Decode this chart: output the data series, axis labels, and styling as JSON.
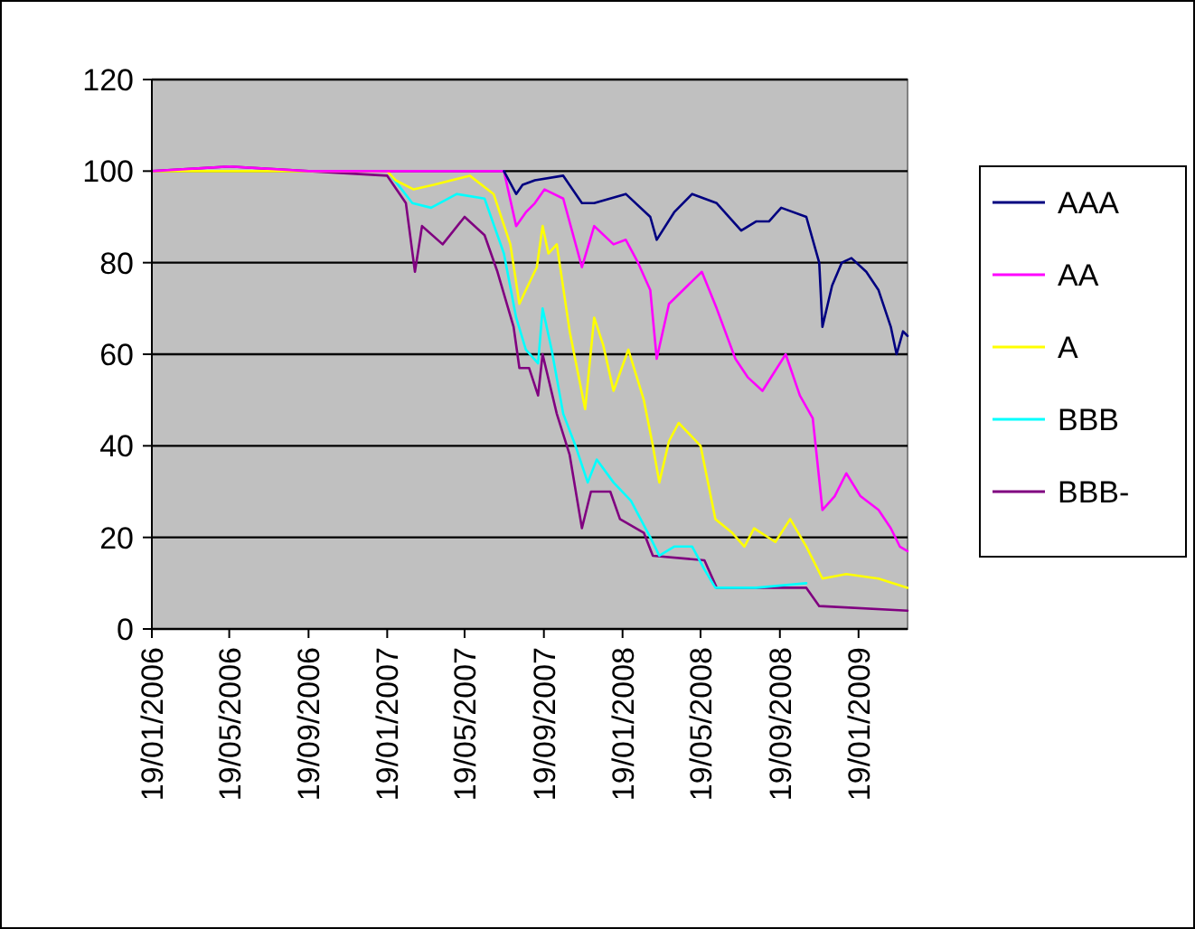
{
  "chart_data": {
    "type": "line",
    "xlim": [
      "2006-01-19",
      "2009-04-05"
    ],
    "ylim": [
      0,
      120
    ],
    "yticks": [
      0,
      20,
      40,
      60,
      80,
      100,
      120
    ],
    "xticks": [
      {
        "value": "2006-01-19",
        "label": "19/01/2006"
      },
      {
        "value": "2006-05-19",
        "label": "19/05/2006"
      },
      {
        "value": "2006-09-19",
        "label": "19/09/2006"
      },
      {
        "value": "2007-01-19",
        "label": "19/01/2007"
      },
      {
        "value": "2007-05-19",
        "label": "19/05/2007"
      },
      {
        "value": "2007-09-19",
        "label": "19/09/2007"
      },
      {
        "value": "2008-01-19",
        "label": "19/01/2008"
      },
      {
        "value": "2008-05-19",
        "label": "19/05/2008"
      },
      {
        "value": "2008-09-19",
        "label": "19/09/2008"
      },
      {
        "value": "2009-01-19",
        "label": "19/01/2009"
      }
    ],
    "grid": "y",
    "legend": "right",
    "marker": "none",
    "line_style": "solid",
    "series": [
      {
        "name": "AAA",
        "color": "#000080",
        "x": [
          "2007-07-19",
          "2007-08-07",
          "2007-08-17",
          "2007-09-05",
          "2007-10-19",
          "2007-11-17",
          "2007-12-06",
          "2008-01-24",
          "2008-03-02",
          "2008-03-12",
          "2008-04-08",
          "2008-05-06",
          "2008-06-13",
          "2008-07-21",
          "2008-08-13",
          "2008-09-02",
          "2008-09-21",
          "2008-10-30",
          "2008-11-19",
          "2008-11-24",
          "2008-12-09",
          "2008-12-24",
          "2009-01-08",
          "2009-01-31",
          "2009-02-19",
          "2009-03-10",
          "2009-03-19",
          "2009-03-29",
          "2009-04-05"
        ],
        "values": [
          100,
          95,
          97,
          98,
          99,
          93,
          93,
          95,
          90,
          85,
          91,
          95,
          93,
          87,
          89,
          89,
          92,
          90,
          80,
          66,
          75,
          80,
          81,
          78,
          74,
          66,
          60,
          65,
          64
        ]
      },
      {
        "name": "AA",
        "color": "#ff00ff",
        "x": [
          "2006-01-19",
          "2006-05-19",
          "2006-09-19",
          "2007-01-19",
          "2007-05-19",
          "2007-07-19",
          "2007-08-07",
          "2007-08-22",
          "2007-09-05",
          "2007-09-20",
          "2007-10-19",
          "2007-11-17",
          "2007-12-06",
          "2008-01-05",
          "2008-01-24",
          "2008-02-12",
          "2008-03-02",
          "2008-03-12",
          "2008-03-31",
          "2008-04-29",
          "2008-05-21",
          "2008-06-13",
          "2008-07-12",
          "2008-07-31",
          "2008-08-23",
          "2008-09-28",
          "2008-10-20",
          "2008-11-09",
          "2008-11-24",
          "2008-12-13",
          "2008-12-31",
          "2009-01-22",
          "2009-02-19",
          "2009-03-10",
          "2009-03-24",
          "2009-04-05"
        ],
        "values": [
          100,
          101,
          100,
          100,
          100,
          100,
          88,
          91,
          93,
          96,
          94,
          79,
          88,
          84,
          85,
          80,
          74,
          59,
          71,
          75,
          78,
          70,
          59,
          55,
          52,
          60,
          51,
          46,
          26,
          29,
          34,
          29,
          26,
          22,
          18,
          17
        ]
      },
      {
        "name": "A",
        "color": "#ffff00",
        "x": [
          "2006-01-19",
          "2006-05-19",
          "2006-09-19",
          "2007-01-19",
          "2007-02-01",
          "2007-03-01",
          "2007-04-01",
          "2007-05-27",
          "2007-07-03",
          "2007-07-29",
          "2007-08-12",
          "2007-08-22",
          "2007-09-08",
          "2007-09-17",
          "2007-09-26",
          "2007-10-09",
          "2007-10-29",
          "2007-11-22",
          "2007-12-06",
          "2007-12-20",
          "2008-01-05",
          "2008-01-28",
          "2008-02-21",
          "2008-03-06",
          "2008-03-16",
          "2008-03-31",
          "2008-04-15",
          "2008-05-19",
          "2008-06-11",
          "2008-07-07",
          "2008-07-26",
          "2008-08-10",
          "2008-09-12",
          "2008-10-05",
          "2008-10-30",
          "2008-11-24",
          "2008-12-31",
          "2009-02-19",
          "2009-04-05"
        ],
        "values": [
          100,
          100,
          100,
          100,
          98,
          96,
          97,
          99,
          95,
          84,
          71,
          74,
          79,
          88,
          82,
          84,
          65,
          48,
          68,
          62,
          52,
          61,
          50,
          40,
          32,
          41,
          45,
          40,
          24,
          21,
          18,
          22,
          19,
          24,
          18,
          11,
          12,
          11,
          9
        ]
      },
      {
        "name": "BBB",
        "color": "#00ffff",
        "x": [
          "2007-01-25",
          "2007-02-27",
          "2007-03-28",
          "2007-05-07",
          "2007-06-19",
          "2007-07-19",
          "2007-08-07",
          "2007-08-22",
          "2007-09-10",
          "2007-09-17",
          "2007-10-01",
          "2007-10-19",
          "2007-11-07",
          "2007-11-26",
          "2007-12-10",
          "2008-01-05",
          "2008-02-01",
          "2008-03-02",
          "2008-03-16",
          "2008-04-08",
          "2008-05-06",
          "2008-05-25",
          "2008-06-11",
          "2008-08-13",
          "2008-10-30"
        ],
        "values": [
          99,
          93,
          92,
          95,
          94,
          82,
          68,
          61,
          58,
          70,
          61,
          47,
          40,
          32,
          37,
          32,
          28,
          20,
          16,
          18,
          18,
          13,
          9,
          9,
          10
        ]
      },
      {
        "name": "BBB-",
        "color": "#800080",
        "x": [
          "2006-01-19",
          "2006-05-19",
          "2006-09-19",
          "2007-01-19",
          "2007-02-17",
          "2007-03-03",
          "2007-03-14",
          "2007-04-15",
          "2007-05-19",
          "2007-06-19",
          "2007-07-09",
          "2007-08-03",
          "2007-08-12",
          "2007-08-27",
          "2007-09-10",
          "2007-09-17",
          "2007-10-09",
          "2007-10-29",
          "2007-11-17",
          "2007-12-01",
          "2007-12-31",
          "2008-01-15",
          "2008-02-21",
          "2008-03-06",
          "2008-05-25",
          "2008-06-13",
          "2008-10-30",
          "2008-11-19",
          "2009-04-05"
        ],
        "values": [
          100,
          101,
          100,
          99,
          93,
          78,
          88,
          84,
          90,
          86,
          78,
          66,
          57,
          57,
          51,
          60,
          47,
          38,
          22,
          30,
          30,
          24,
          21,
          16,
          15,
          9,
          9,
          5,
          4
        ]
      }
    ]
  }
}
